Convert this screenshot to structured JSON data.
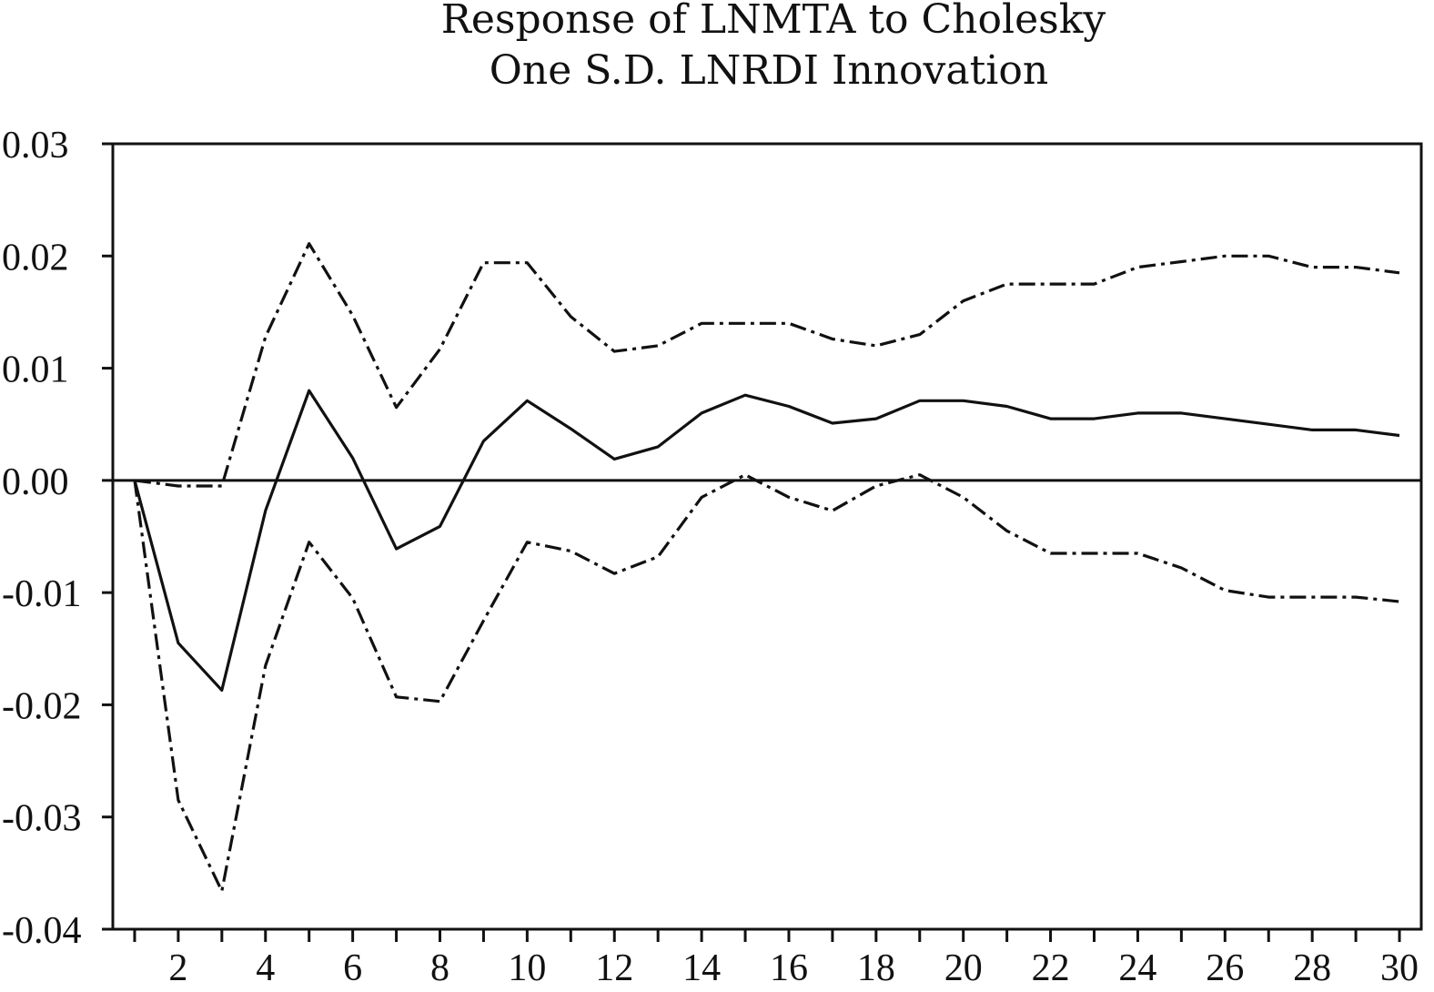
{
  "chart_data": {
    "type": "line",
    "title_lines": [
      "Response of LNMTA to Cholesky",
      "One S.D. LNRDI Innovation"
    ],
    "xlabel": "",
    "ylabel": "",
    "xlim": [
      0.5,
      30.5
    ],
    "ylim": [
      -0.04,
      0.03
    ],
    "x_ticks": [
      2,
      4,
      6,
      8,
      10,
      12,
      14,
      16,
      18,
      20,
      22,
      24,
      26,
      28,
      30
    ],
    "y_ticks": [
      "0.03",
      "0.02",
      "0.01",
      "0.00",
      "-0.01",
      "-0.02",
      "-0.03",
      "-0.04"
    ],
    "y_tick_values": [
      0.03,
      0.02,
      0.01,
      0.0,
      -0.01,
      -0.02,
      -0.03,
      -0.04
    ],
    "grid": false,
    "zero_line": true,
    "x": [
      1,
      2,
      3,
      4,
      5,
      6,
      7,
      8,
      9,
      10,
      11,
      12,
      13,
      14,
      15,
      16,
      17,
      18,
      19,
      20,
      21,
      22,
      23,
      24,
      25,
      26,
      27,
      28,
      29,
      30
    ],
    "series": [
      {
        "style": "solid",
        "values": [
          0.0,
          -0.0145,
          -0.0187,
          -0.0027,
          0.008,
          0.002,
          -0.0061,
          -0.0041,
          0.0035,
          0.0071,
          0.0046,
          0.0019,
          0.003,
          0.006,
          0.0076,
          0.0066,
          0.0051,
          0.0055,
          0.0071,
          0.0071,
          0.0066,
          0.0055,
          0.0055,
          0.006,
          0.006,
          0.0055,
          0.005,
          0.0045,
          0.0045,
          0.004
        ]
      },
      {
        "style": "dash-dot",
        "values": [
          0.0,
          -0.0005,
          -0.0005,
          0.0128,
          0.0211,
          0.0147,
          0.0065,
          0.0117,
          0.0194,
          0.0194,
          0.0146,
          0.0115,
          0.012,
          0.014,
          0.014,
          0.014,
          0.0126,
          0.012,
          0.013,
          0.016,
          0.0175,
          0.0175,
          0.0175,
          0.019,
          0.0195,
          0.02,
          0.02,
          0.019,
          0.019,
          0.0185
        ]
      },
      {
        "style": "dash-dot",
        "values": [
          0.0,
          -0.0285,
          -0.0366,
          -0.0165,
          -0.0055,
          -0.0105,
          -0.0193,
          -0.0197,
          -0.0125,
          -0.0055,
          -0.0063,
          -0.0083,
          -0.0068,
          -0.0015,
          0.0005,
          -0.0015,
          -0.0027,
          -0.0005,
          0.0005,
          -0.0015,
          -0.0045,
          -0.0065,
          -0.0065,
          -0.0065,
          -0.0078,
          -0.0098,
          -0.0104,
          -0.0104,
          -0.0104,
          -0.0108
        ]
      }
    ]
  }
}
